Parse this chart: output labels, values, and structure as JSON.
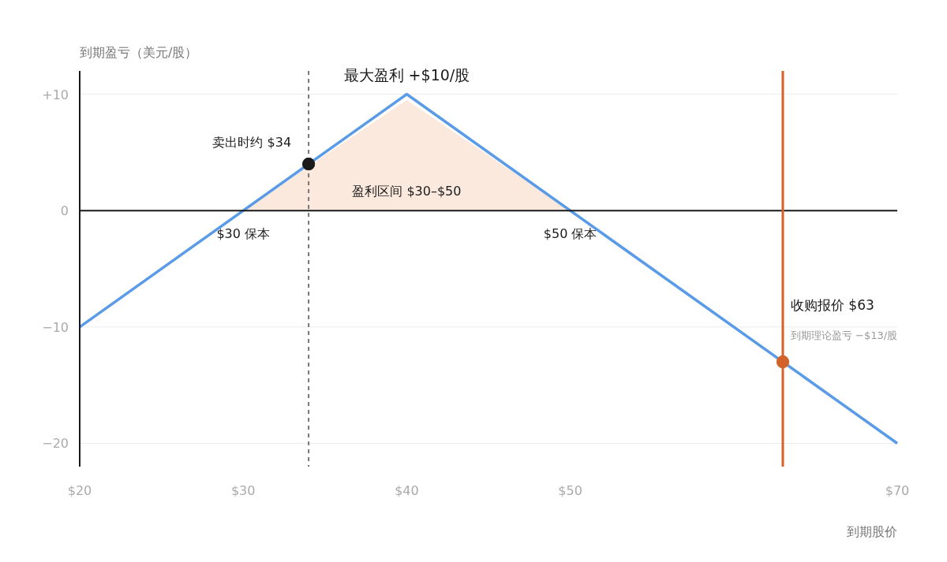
{
  "chart_data": {
    "type": "line",
    "xlabel": "到期股价",
    "ylabel": "到期盈亏（美元/股）",
    "xlim": [
      20,
      70
    ],
    "ylim": [
      -22,
      12
    ],
    "xticks": [
      {
        "value": 20,
        "label": "$20"
      },
      {
        "value": 30,
        "label": "$30"
      },
      {
        "value": 40,
        "label": "$40"
      },
      {
        "value": 50,
        "label": "$50"
      },
      {
        "value": 70,
        "label": "$70"
      }
    ],
    "yticks": [
      {
        "value": 10,
        "label": "+10"
      },
      0,
      {
        "value": -10,
        "label": "−10"
      },
      {
        "value": -20,
        "label": "−20"
      }
    ],
    "grid": "y",
    "series": [
      {
        "type": "area",
        "color": "#fbe4d6",
        "x": [
          30,
          40,
          50
        ],
        "values": [
          0,
          9.5,
          0
        ]
      },
      {
        "color": "#5a9be8",
        "x": [
          20,
          40,
          70
        ],
        "values": [
          -10,
          10,
          -20
        ]
      },
      {
        "type": "scatter",
        "color": "#1a1a1a",
        "x": [
          34
        ],
        "values": [
          4
        ]
      },
      {
        "type": "scatter",
        "color": "#d2622a",
        "x": [
          63
        ],
        "values": [
          -13
        ]
      }
    ],
    "ref_lines": [
      {
        "axis": "y",
        "value": 0,
        "color": "#1a1a1a",
        "line_style": "solid"
      },
      {
        "axis": "x",
        "value": 34,
        "color": "#777777",
        "line_style": "dashed"
      },
      {
        "axis": "x",
        "value": 63,
        "color": "#d2622a",
        "line_style": "solid"
      }
    ],
    "annotations": [
      {
        "text": "最大盈利 +$10/股",
        "x": 40,
        "y": 10
      },
      {
        "text": "卖出时约 $34",
        "x": 34,
        "y": 4
      },
      {
        "text": "盈利区间 $30–$50",
        "x": 40,
        "y": 0
      },
      {
        "text": "$30 保本",
        "x": 30,
        "y": 0
      },
      {
        "text": "$50 保本",
        "x": 50,
        "y": 0
      },
      {
        "text": "收购报价 $63",
        "x": 63,
        "y": -8.5
      },
      {
        "text": "到期理论盈亏 −$13/股",
        "x": 63,
        "y": -11
      }
    ]
  }
}
